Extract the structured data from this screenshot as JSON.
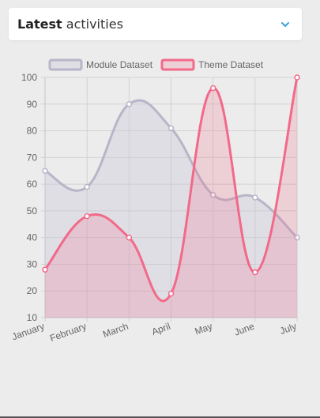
{
  "header": {
    "title_bold": "Latest",
    "title_rest": "activities",
    "toggle_icon": "chevron-down-icon",
    "accent_color": "#3a9fd5"
  },
  "chart_data": {
    "type": "area",
    "categories": [
      "January",
      "February",
      "March",
      "April",
      "May",
      "June",
      "July"
    ],
    "series": [
      {
        "name": "Module Dataset",
        "values": [
          65,
          59,
          90,
          81,
          56,
          55,
          40
        ],
        "stroke": "#b8b5c8",
        "fill": "rgba(200,198,214,0.35)"
      },
      {
        "name": "Theme Dataset",
        "values": [
          28,
          48,
          40,
          19,
          96,
          27,
          100
        ],
        "stroke": "#f26989",
        "fill": "rgba(242,105,137,0.22)"
      }
    ],
    "ylim": [
      10,
      100
    ],
    "yticks": [
      10,
      20,
      30,
      40,
      50,
      60,
      70,
      80,
      90,
      100
    ],
    "grid": true,
    "legend_position": "top",
    "xlabel": "",
    "ylabel": ""
  }
}
